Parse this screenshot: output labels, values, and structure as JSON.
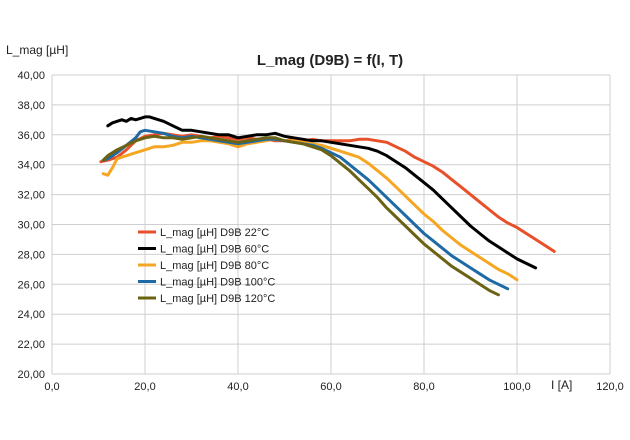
{
  "chart_data": {
    "type": "line",
    "title": "L_mag (D9B) = f(I, T)",
    "ylabel": "L_mag [µH]",
    "xlabel": "I [A]",
    "xlim": [
      0,
      120
    ],
    "ylim": [
      20,
      40
    ],
    "xticks": [
      "0,0",
      "20,0",
      "40,0",
      "60,0",
      "80,0",
      "100,0",
      "120,0"
    ],
    "yticks": [
      "20,00",
      "22,00",
      "24,00",
      "26,00",
      "28,00",
      "30,00",
      "32,00",
      "34,00",
      "36,00",
      "38,00",
      "40,00"
    ],
    "grid": true,
    "legend_position": "left-middle",
    "series": [
      {
        "name": "L_mag [µH] D9B 22°C",
        "color": "#e8502a",
        "points": [
          [
            10.5,
            34.2
          ],
          [
            12,
            34.3
          ],
          [
            14,
            34.5
          ],
          [
            16,
            35.0
          ],
          [
            18,
            35.6
          ],
          [
            20,
            35.9
          ],
          [
            22,
            36.0
          ],
          [
            24,
            36.1
          ],
          [
            26,
            36.0
          ],
          [
            28,
            35.9
          ],
          [
            30,
            36.0
          ],
          [
            32,
            35.9
          ],
          [
            34,
            35.8
          ],
          [
            36,
            35.9
          ],
          [
            38,
            35.8
          ],
          [
            40,
            35.7
          ],
          [
            42,
            35.8
          ],
          [
            44,
            35.7
          ],
          [
            46,
            35.7
          ],
          [
            48,
            35.6
          ],
          [
            50,
            35.6
          ],
          [
            52,
            35.7
          ],
          [
            54,
            35.6
          ],
          [
            56,
            35.7
          ],
          [
            58,
            35.6
          ],
          [
            60,
            35.6
          ],
          [
            62,
            35.6
          ],
          [
            64,
            35.6
          ],
          [
            66,
            35.7
          ],
          [
            68,
            35.7
          ],
          [
            70,
            35.6
          ],
          [
            72,
            35.5
          ],
          [
            74,
            35.2
          ],
          [
            76,
            34.9
          ],
          [
            78,
            34.5
          ],
          [
            80,
            34.2
          ],
          [
            82,
            33.9
          ],
          [
            84,
            33.5
          ],
          [
            86,
            33.0
          ],
          [
            88,
            32.5
          ],
          [
            90,
            32.0
          ],
          [
            92,
            31.5
          ],
          [
            94,
            31.0
          ],
          [
            96,
            30.5
          ],
          [
            98,
            30.1
          ],
          [
            100,
            29.8
          ],
          [
            102,
            29.4
          ],
          [
            104,
            29.0
          ],
          [
            106,
            28.6
          ],
          [
            108,
            28.2
          ]
        ]
      },
      {
        "name": "L_mag [µH] D9B 60°C",
        "color": "#000000",
        "points": [
          [
            12,
            36.6
          ],
          [
            13,
            36.8
          ],
          [
            14,
            36.9
          ],
          [
            15,
            37.0
          ],
          [
            16,
            36.9
          ],
          [
            17,
            37.1
          ],
          [
            18,
            37.0
          ],
          [
            19,
            37.1
          ],
          [
            20,
            37.2
          ],
          [
            21,
            37.2
          ],
          [
            22,
            37.1
          ],
          [
            24,
            36.9
          ],
          [
            26,
            36.6
          ],
          [
            28,
            36.3
          ],
          [
            30,
            36.3
          ],
          [
            32,
            36.2
          ],
          [
            34,
            36.1
          ],
          [
            36,
            36.0
          ],
          [
            38,
            36.0
          ],
          [
            40,
            35.8
          ],
          [
            42,
            35.9
          ],
          [
            44,
            36.0
          ],
          [
            46,
            36.0
          ],
          [
            48,
            36.1
          ],
          [
            50,
            35.9
          ],
          [
            52,
            35.8
          ],
          [
            54,
            35.7
          ],
          [
            56,
            35.6
          ],
          [
            58,
            35.6
          ],
          [
            60,
            35.5
          ],
          [
            62,
            35.4
          ],
          [
            64,
            35.3
          ],
          [
            66,
            35.2
          ],
          [
            68,
            35.1
          ],
          [
            70,
            34.9
          ],
          [
            72,
            34.6
          ],
          [
            74,
            34.2
          ],
          [
            76,
            33.8
          ],
          [
            78,
            33.3
          ],
          [
            80,
            32.8
          ],
          [
            82,
            32.3
          ],
          [
            84,
            31.7
          ],
          [
            86,
            31.1
          ],
          [
            88,
            30.5
          ],
          [
            90,
            29.9
          ],
          [
            92,
            29.4
          ],
          [
            94,
            28.9
          ],
          [
            96,
            28.5
          ],
          [
            98,
            28.1
          ],
          [
            100,
            27.7
          ],
          [
            102,
            27.4
          ],
          [
            104,
            27.1
          ]
        ]
      },
      {
        "name": "L_mag [µH] D9B 80°C",
        "color": "#f5a623",
        "points": [
          [
            11,
            33.4
          ],
          [
            12,
            33.3
          ],
          [
            13,
            33.8
          ],
          [
            14,
            34.4
          ],
          [
            16,
            34.6
          ],
          [
            18,
            34.8
          ],
          [
            20,
            35.0
          ],
          [
            22,
            35.2
          ],
          [
            24,
            35.2
          ],
          [
            26,
            35.3
          ],
          [
            28,
            35.5
          ],
          [
            30,
            35.5
          ],
          [
            32,
            35.6
          ],
          [
            34,
            35.6
          ],
          [
            36,
            35.5
          ],
          [
            38,
            35.4
          ],
          [
            40,
            35.2
          ],
          [
            42,
            35.4
          ],
          [
            44,
            35.5
          ],
          [
            46,
            35.6
          ],
          [
            48,
            35.7
          ],
          [
            50,
            35.6
          ],
          [
            52,
            35.6
          ],
          [
            54,
            35.5
          ],
          [
            56,
            35.4
          ],
          [
            58,
            35.3
          ],
          [
            60,
            35.1
          ],
          [
            62,
            34.9
          ],
          [
            64,
            34.7
          ],
          [
            66,
            34.5
          ],
          [
            68,
            34.1
          ],
          [
            70,
            33.6
          ],
          [
            72,
            33.1
          ],
          [
            74,
            32.5
          ],
          [
            76,
            31.9
          ],
          [
            78,
            31.3
          ],
          [
            80,
            30.7
          ],
          [
            82,
            30.2
          ],
          [
            84,
            29.6
          ],
          [
            86,
            29.1
          ],
          [
            88,
            28.6
          ],
          [
            90,
            28.2
          ],
          [
            92,
            27.8
          ],
          [
            94,
            27.4
          ],
          [
            96,
            27.0
          ],
          [
            98,
            26.7
          ],
          [
            100,
            26.3
          ]
        ]
      },
      {
        "name": "L_mag [µH] D9B 100°C",
        "color": "#1f6aa5",
        "points": [
          [
            11,
            34.3
          ],
          [
            12,
            34.4
          ],
          [
            14,
            34.8
          ],
          [
            16,
            35.3
          ],
          [
            18,
            35.8
          ],
          [
            19,
            36.2
          ],
          [
            20,
            36.3
          ],
          [
            22,
            36.2
          ],
          [
            24,
            36.1
          ],
          [
            26,
            35.9
          ],
          [
            28,
            35.8
          ],
          [
            30,
            35.9
          ],
          [
            32,
            35.8
          ],
          [
            34,
            35.7
          ],
          [
            36,
            35.6
          ],
          [
            38,
            35.5
          ],
          [
            40,
            35.4
          ],
          [
            42,
            35.5
          ],
          [
            44,
            35.6
          ],
          [
            46,
            35.7
          ],
          [
            48,
            35.7
          ],
          [
            50,
            35.6
          ],
          [
            52,
            35.5
          ],
          [
            54,
            35.4
          ],
          [
            56,
            35.3
          ],
          [
            58,
            35.1
          ],
          [
            60,
            34.8
          ],
          [
            62,
            34.5
          ],
          [
            64,
            34.0
          ],
          [
            66,
            33.5
          ],
          [
            68,
            33.0
          ],
          [
            70,
            32.4
          ],
          [
            72,
            31.8
          ],
          [
            74,
            31.2
          ],
          [
            76,
            30.6
          ],
          [
            78,
            30.0
          ],
          [
            80,
            29.4
          ],
          [
            82,
            28.9
          ],
          [
            84,
            28.4
          ],
          [
            86,
            27.9
          ],
          [
            88,
            27.5
          ],
          [
            90,
            27.1
          ],
          [
            92,
            26.7
          ],
          [
            94,
            26.3
          ],
          [
            96,
            26.0
          ],
          [
            98,
            25.7
          ]
        ]
      },
      {
        "name": "L_mag [µH] D9B 120°C",
        "color": "#6b6313",
        "points": [
          [
            11,
            34.3
          ],
          [
            12,
            34.6
          ],
          [
            14,
            35.0
          ],
          [
            16,
            35.3
          ],
          [
            18,
            35.6
          ],
          [
            20,
            35.8
          ],
          [
            22,
            35.9
          ],
          [
            24,
            35.8
          ],
          [
            26,
            35.8
          ],
          [
            28,
            35.7
          ],
          [
            30,
            35.8
          ],
          [
            32,
            35.9
          ],
          [
            34,
            35.8
          ],
          [
            36,
            35.7
          ],
          [
            38,
            35.6
          ],
          [
            40,
            35.5
          ],
          [
            42,
            35.6
          ],
          [
            44,
            35.7
          ],
          [
            46,
            35.8
          ],
          [
            48,
            35.8
          ],
          [
            50,
            35.6
          ],
          [
            52,
            35.5
          ],
          [
            54,
            35.4
          ],
          [
            56,
            35.2
          ],
          [
            58,
            35.0
          ],
          [
            60,
            34.6
          ],
          [
            62,
            34.1
          ],
          [
            64,
            33.6
          ],
          [
            66,
            33.0
          ],
          [
            68,
            32.4
          ],
          [
            70,
            31.8
          ],
          [
            72,
            31.1
          ],
          [
            74,
            30.5
          ],
          [
            76,
            29.9
          ],
          [
            78,
            29.3
          ],
          [
            80,
            28.7
          ],
          [
            82,
            28.2
          ],
          [
            84,
            27.7
          ],
          [
            86,
            27.2
          ],
          [
            88,
            26.8
          ],
          [
            90,
            26.4
          ],
          [
            92,
            26.0
          ],
          [
            94,
            25.6
          ],
          [
            96,
            25.3
          ]
        ]
      }
    ]
  }
}
